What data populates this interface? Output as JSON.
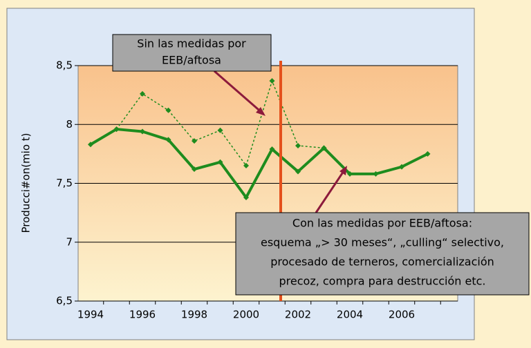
{
  "chart_data": {
    "type": "line",
    "y_label": "Producci#on(mio t)",
    "categories": [
      "1994",
      null,
      "1996",
      null,
      "1998",
      null,
      "2000",
      null,
      "2002",
      null,
      "2004",
      null,
      "2006",
      null
    ],
    "series": [
      {
        "name": "Sin las medidas por EEB/aftosa",
        "color": "#1e8c1e",
        "style": "dashed",
        "values": [
          null,
          7.96,
          8.26,
          8.12,
          7.86,
          7.95,
          7.65,
          8.37,
          7.82,
          7.8,
          null,
          null,
          null,
          null
        ]
      },
      {
        "name": "Con las medidas por EEB/aftosa",
        "color": "#1e8c1e",
        "style": "solid",
        "values": [
          7.83,
          7.96,
          7.94,
          7.87,
          7.62,
          7.68,
          7.38,
          7.79,
          7.6,
          7.8,
          7.58,
          7.58,
          7.64,
          7.75
        ]
      }
    ],
    "annotations": [
      {
        "lines": [
          "Sin las medidas por",
          "EEB/aftosa"
        ]
      },
      {
        "lines": [
          "Con las medidas por EEB/aftosa:",
          "esquema „> 30 meses“, „culling“ selectivo,",
          "procesado de terneros, comercialización",
          "precoz, compra para destrucción etc."
        ]
      }
    ],
    "ylim": [
      6.5,
      8.5
    ],
    "yticks": [
      {
        "value": 6.5,
        "label": "6,5"
      },
      7,
      {
        "value": 7.5,
        "label": "7,5"
      },
      8,
      {
        "value": 8.5,
        "label": "8,5"
      }
    ],
    "grid": true
  }
}
